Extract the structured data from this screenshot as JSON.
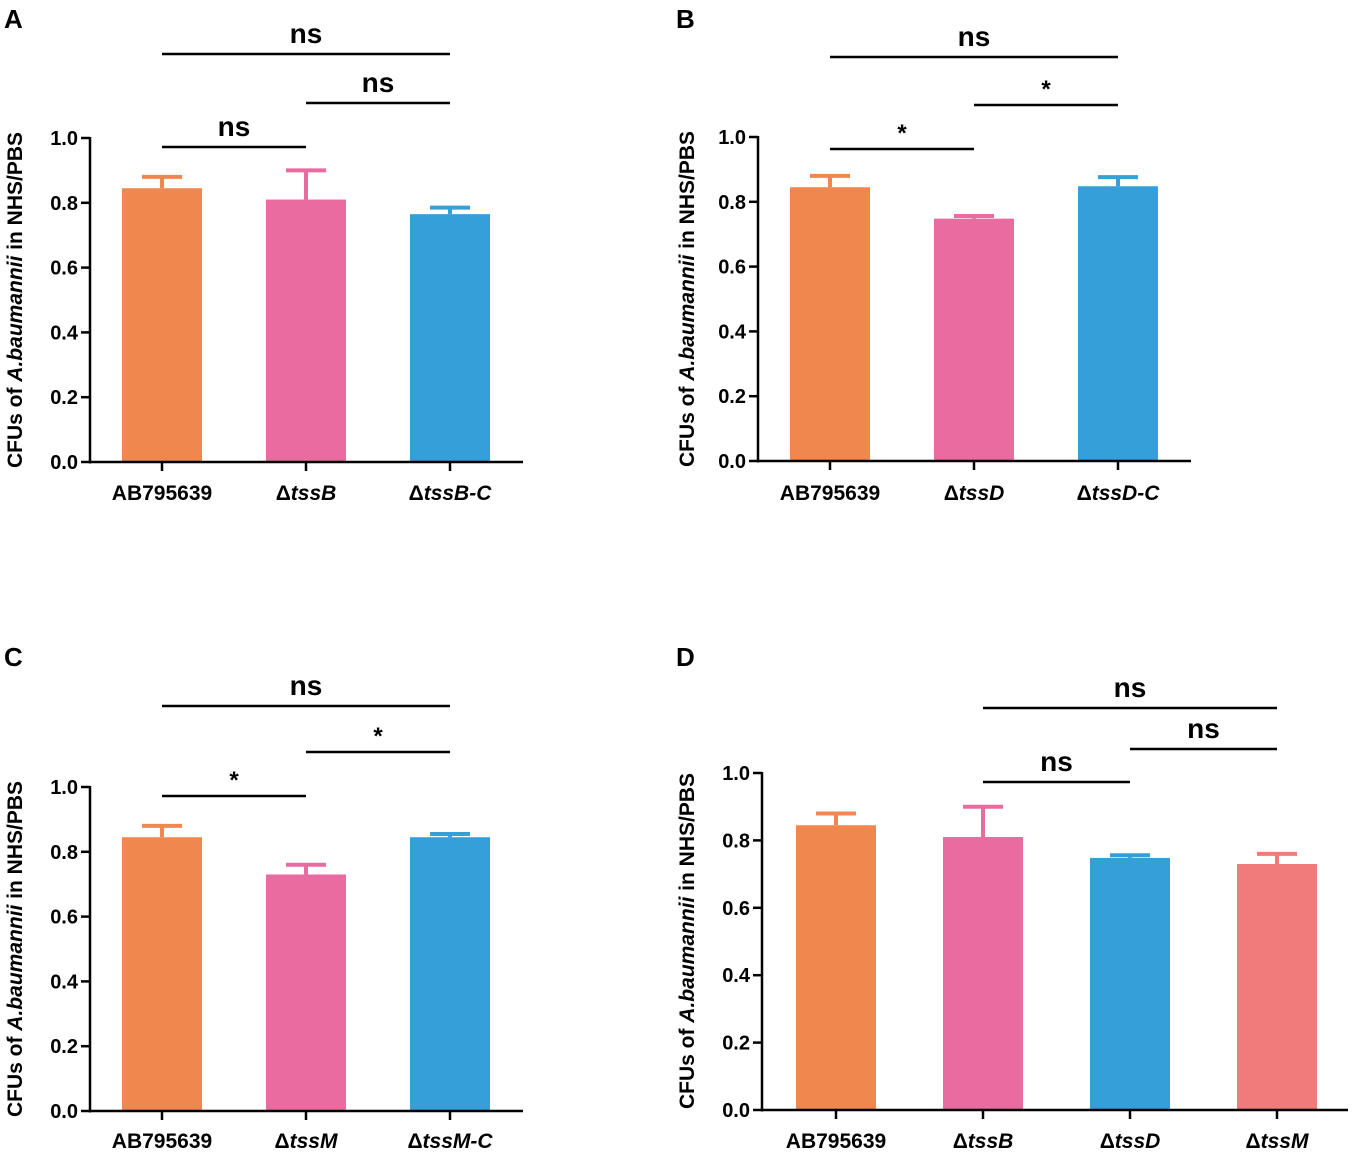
{
  "colors": {
    "orange": "#F0874E",
    "pink": "#EA6BA0",
    "blue": "#349FD9",
    "salmon": "#EF7B7B",
    "axis": "#000000"
  },
  "chart_data": [
    {
      "panel": "A",
      "type": "bar",
      "ylabel_prefix": "CFUs of ",
      "ylabel_italic": "A.baumannii",
      "ylabel_suffix": " in NHS/PBS",
      "ylim": [
        0,
        1.0
      ],
      "yticks": [
        "0.0",
        "0.2",
        "0.4",
        "0.6",
        "0.8",
        "1.0"
      ],
      "categories": [
        {
          "delta": "",
          "name": "AB795639",
          "italic": false
        },
        {
          "delta": "Δ",
          "name": "tssB",
          "italic": true
        },
        {
          "delta": "Δ",
          "name": "tssB-C",
          "italic": true
        }
      ],
      "values": [
        0.845,
        0.81,
        0.765
      ],
      "errors": [
        0.035,
        0.09,
        0.02
      ],
      "bar_colors": [
        "orange",
        "pink",
        "blue"
      ],
      "significance": [
        {
          "from": 0,
          "to": 1,
          "label": "ns",
          "level": 0
        },
        {
          "from": 1,
          "to": 2,
          "label": "ns",
          "level": 1
        },
        {
          "from": 0,
          "to": 2,
          "label": "ns",
          "level": 2
        }
      ]
    },
    {
      "panel": "B",
      "type": "bar",
      "ylabel_prefix": "CFUs of ",
      "ylabel_italic": "A.baumannii",
      "ylabel_suffix": " in NHS/PBS",
      "ylim": [
        0,
        1.0
      ],
      "yticks": [
        "0.0",
        "0.2",
        "0.4",
        "0.6",
        "0.8",
        "1.0"
      ],
      "categories": [
        {
          "delta": "",
          "name": "AB795639",
          "italic": false
        },
        {
          "delta": "Δ",
          "name": "tssD",
          "italic": true
        },
        {
          "delta": "Δ",
          "name": "tssD-C",
          "italic": true
        }
      ],
      "values": [
        0.845,
        0.748,
        0.848
      ],
      "errors": [
        0.035,
        0.008,
        0.028
      ],
      "bar_colors": [
        "orange",
        "pink",
        "blue"
      ],
      "significance": [
        {
          "from": 0,
          "to": 1,
          "label": "*",
          "level": 0
        },
        {
          "from": 1,
          "to": 2,
          "label": "*",
          "level": 1
        },
        {
          "from": 0,
          "to": 2,
          "label": "ns",
          "level": 2
        }
      ]
    },
    {
      "panel": "C",
      "type": "bar",
      "ylabel_prefix": "CFUs of ",
      "ylabel_italic": "A.baumannii",
      "ylabel_suffix": " in NHS/PBS",
      "ylim": [
        0,
        1.0
      ],
      "yticks": [
        "0.0",
        "0.2",
        "0.4",
        "0.6",
        "0.8",
        "1.0"
      ],
      "categories": [
        {
          "delta": "",
          "name": "AB795639",
          "italic": false
        },
        {
          "delta": "Δ",
          "name": "tssM",
          "italic": true
        },
        {
          "delta": "Δ",
          "name": "tssM-C",
          "italic": true
        }
      ],
      "values": [
        0.845,
        0.73,
        0.845
      ],
      "errors": [
        0.035,
        0.03,
        0.01
      ],
      "bar_colors": [
        "orange",
        "pink",
        "blue"
      ],
      "significance": [
        {
          "from": 0,
          "to": 1,
          "label": "*",
          "level": 0
        },
        {
          "from": 1,
          "to": 2,
          "label": "*",
          "level": 1
        },
        {
          "from": 0,
          "to": 2,
          "label": "ns",
          "level": 2
        }
      ]
    },
    {
      "panel": "D",
      "type": "bar",
      "ylabel_prefix": "CFUs of ",
      "ylabel_italic": "A.baumannii",
      "ylabel_suffix": " in NHS/PBS",
      "ylim": [
        0,
        1.0
      ],
      "yticks": [
        "0.0",
        "0.2",
        "0.4",
        "0.6",
        "0.8",
        "1.0"
      ],
      "categories": [
        {
          "delta": "",
          "name": "AB795639",
          "italic": false
        },
        {
          "delta": "Δ",
          "name": "tssB",
          "italic": true
        },
        {
          "delta": "Δ",
          "name": "tssD",
          "italic": true
        },
        {
          "delta": "Δ",
          "name": "tssM",
          "italic": true
        }
      ],
      "values": [
        0.845,
        0.81,
        0.748,
        0.73
      ],
      "errors": [
        0.035,
        0.09,
        0.008,
        0.03
      ],
      "bar_colors": [
        "orange",
        "pink",
        "blue",
        "salmon"
      ],
      "significance": [
        {
          "from": 1,
          "to": 2,
          "label": "ns",
          "level": 0
        },
        {
          "from": 2,
          "to": 3,
          "label": "ns",
          "level": 1
        },
        {
          "from": 1,
          "to": 3,
          "label": "ns",
          "level": 2
        }
      ]
    }
  ]
}
